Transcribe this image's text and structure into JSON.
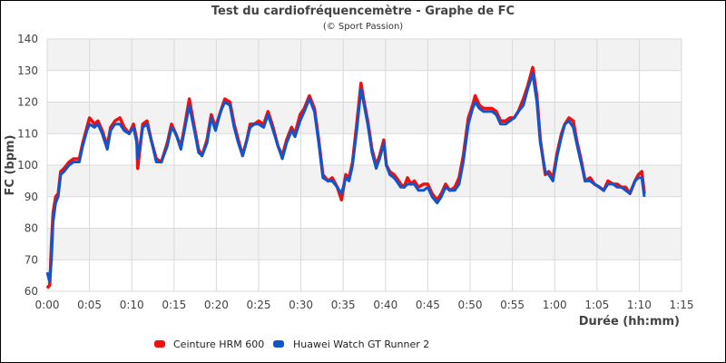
{
  "chart_data": {
    "type": "line",
    "title": "Test du cardiofréquencemètre - Graphe de FC",
    "subtitle": "(© Sport Passion)",
    "xlabel": "Durée (hh:mm)",
    "ylabel": "FC (bpm)",
    "xlim": [
      0,
      75
    ],
    "ylim": [
      60,
      140
    ],
    "x_ticks": [
      0,
      5,
      10,
      15,
      20,
      25,
      30,
      35,
      40,
      45,
      50,
      55,
      60,
      65,
      70,
      75
    ],
    "x_tick_labels": [
      "0:00",
      "0:05",
      "0:10",
      "0:15",
      "0:20",
      "0:25",
      "0:30",
      "0:35",
      "0:40",
      "0:45",
      "0:50",
      "0:55",
      "1:00",
      "1:05",
      "1:10",
      "1:15"
    ],
    "y_ticks": [
      60,
      70,
      80,
      90,
      100,
      110,
      120,
      130,
      140
    ],
    "y_tick_labels": [
      "60",
      "70",
      "80",
      "90",
      "100",
      "110",
      "120",
      "130",
      "140"
    ],
    "grid": true,
    "alternating_bands": true,
    "legend_position": "bottom",
    "x_unit": "minutes",
    "x": [
      0,
      0.3,
      0.5,
      0.7,
      1.0,
      1.3,
      1.6,
      2.0,
      2.6,
      3.1,
      3.8,
      4.2,
      4.7,
      5.0,
      5.6,
      6.0,
      6.5,
      7.1,
      7.5,
      8.0,
      8.6,
      9.1,
      9.7,
      10.2,
      10.6,
      10.7,
      11.3,
      11.8,
      12.3,
      12.9,
      13.5,
      14.2,
      14.7,
      15.2,
      15.8,
      16.3,
      16.8,
      17.4,
      17.9,
      18.3,
      18.9,
      19.4,
      19.9,
      20.5,
      21.0,
      21.6,
      22.1,
      22.6,
      23.1,
      23.6,
      24.0,
      24.5,
      25.0,
      25.6,
      26.1,
      26.6,
      27.3,
      27.8,
      28.3,
      28.9,
      29.3,
      29.9,
      30.4,
      31.0,
      31.6,
      32.1,
      32.6,
      33.2,
      33.7,
      34.3,
      34.8,
      35.3,
      35.7,
      36.1,
      36.6,
      37.1,
      37.4,
      37.9,
      38.4,
      38.9,
      39.3,
      39.8,
      40.1,
      40.5,
      41.0,
      41.3,
      41.8,
      42.2,
      42.6,
      43.0,
      43.4,
      43.9,
      44.5,
      45.0,
      45.5,
      46.1,
      46.6,
      47.1,
      47.6,
      48.2,
      48.7,
      49.2,
      49.8,
      50.3,
      50.6,
      51.1,
      51.6,
      52.1,
      52.6,
      53.1,
      53.6,
      54.2,
      54.7,
      55.2,
      55.7,
      56.3,
      56.8,
      57.4,
      57.9,
      58.3,
      58.9,
      59.3,
      59.8,
      60.3,
      60.8,
      61.2,
      61.7,
      62.2,
      62.6,
      63.1,
      63.6,
      64.2,
      64.7,
      65.3,
      65.8,
      66.3,
      66.9,
      67.4,
      67.9,
      68.4,
      68.9,
      69.5,
      69.9,
      70.3,
      70.6
    ],
    "series": [
      {
        "name": "Ceinture HRM 600",
        "color": "#ee1111",
        "values": [
          61,
          62,
          75,
          85,
          90,
          91,
          98,
          99,
          101,
          102,
          102,
          107,
          112,
          115,
          113,
          114,
          111,
          106,
          112,
          114,
          115,
          112,
          110,
          113,
          108,
          99,
          113,
          114,
          108,
          102,
          101,
          107,
          113,
          110,
          106,
          113,
          121,
          112,
          105,
          103,
          108,
          116,
          112,
          117,
          121,
          120,
          113,
          108,
          103,
          108,
          113,
          113,
          114,
          113,
          117,
          113,
          106,
          103,
          108,
          112,
          110,
          116,
          118,
          122,
          118,
          108,
          97,
          95,
          96,
          93,
          89,
          97,
          96,
          101,
          113,
          126,
          121,
          114,
          105,
          100,
          103,
          108,
          100,
          98,
          97,
          96,
          94,
          93,
          96,
          94,
          95,
          93,
          94,
          94,
          91,
          89,
          91,
          94,
          92,
          93,
          96,
          103,
          115,
          119,
          122,
          119,
          118,
          118,
          118,
          117,
          114,
          114,
          115,
          115,
          117,
          121,
          125,
          131,
          122,
          108,
          97,
          98,
          96,
          104,
          110,
          113,
          115,
          114,
          108,
          102,
          95,
          96,
          94,
          93,
          92,
          95,
          94,
          94,
          93,
          93,
          91,
          95,
          97,
          98,
          91,
          88
        ]
      },
      {
        "name": "Huawei Watch GT Runner 2",
        "color": "#1155cc",
        "values": [
          66,
          63,
          70,
          82,
          88,
          90,
          97,
          98,
          100,
          101,
          101,
          106,
          111,
          113,
          112,
          113,
          110,
          105,
          111,
          113,
          113,
          111,
          110,
          112,
          107,
          102,
          112,
          113,
          108,
          101,
          101,
          106,
          112,
          110,
          105,
          112,
          119,
          111,
          104,
          103,
          107,
          115,
          111,
          117,
          120,
          119,
          112,
          107,
          103,
          108,
          112,
          113,
          113,
          112,
          116,
          112,
          106,
          102,
          107,
          111,
          109,
          114,
          117,
          121,
          117,
          107,
          96,
          95,
          95,
          93,
          91,
          96,
          95,
          100,
          111,
          124,
          120,
          113,
          104,
          99,
          102,
          107,
          100,
          97,
          96,
          95,
          93,
          93,
          94,
          94,
          94,
          92,
          92,
          93,
          90,
          88,
          90,
          93,
          92,
          92,
          94,
          101,
          113,
          118,
          120,
          118,
          117,
          117,
          117,
          116,
          113,
          113,
          114,
          115,
          117,
          119,
          124,
          129,
          120,
          107,
          98,
          97,
          95,
          103,
          109,
          113,
          114,
          112,
          107,
          101,
          95,
          95,
          94,
          93,
          92,
          94,
          94,
          93,
          93,
          92,
          91,
          95,
          96,
          96,
          90,
          90
        ]
      }
    ]
  },
  "legend": {
    "items": [
      {
        "label": "Ceinture HRM 600",
        "color": "#ee1111"
      },
      {
        "label": "Huawei Watch GT Runner 2",
        "color": "#1155cc"
      }
    ]
  },
  "style": {
    "band_color": "#f2f2f2",
    "grid_color": "#d9d9d9",
    "text_color": "#444444"
  }
}
